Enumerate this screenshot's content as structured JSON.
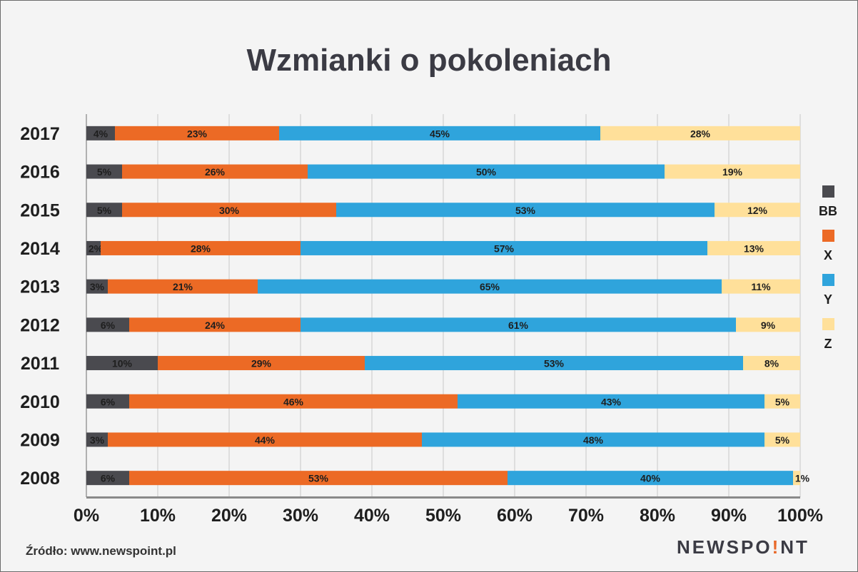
{
  "chart_data": {
    "type": "bar",
    "orientation": "horizontal",
    "stacked": true,
    "title": "Wzmianki o pokoleniach",
    "categories": [
      "2017",
      "2016",
      "2015",
      "2014",
      "2013",
      "2012",
      "2011",
      "2010",
      "2009",
      "2008"
    ],
    "series": [
      {
        "name": "BB",
        "color": "#4a4a4f",
        "values": [
          4,
          5,
          5,
          2,
          3,
          6,
          10,
          6,
          3,
          6
        ]
      },
      {
        "name": "X",
        "color": "#ec6a25",
        "values": [
          23,
          26,
          30,
          28,
          21,
          24,
          29,
          46,
          44,
          53
        ]
      },
      {
        "name": "Y",
        "color": "#2fa4dc",
        "values": [
          45,
          50,
          53,
          57,
          65,
          61,
          53,
          43,
          48,
          40
        ]
      },
      {
        "name": "Z",
        "color": "#ffe09a",
        "values": [
          28,
          19,
          12,
          13,
          11,
          9,
          8,
          5,
          5,
          1
        ]
      }
    ],
    "data_labels": [
      [
        "4%",
        "23%",
        "45%",
        "28%"
      ],
      [
        "5%",
        "26%",
        "50%",
        "19%"
      ],
      [
        "5%",
        "30%",
        "53%",
        "12%"
      ],
      [
        "2%",
        "28%",
        "57%",
        "13%"
      ],
      [
        "3%",
        "21%",
        "65%",
        "11%"
      ],
      [
        "6%",
        "24%",
        "61%",
        "9%"
      ],
      [
        "10%",
        "29%",
        "53%",
        "8%"
      ],
      [
        "6%",
        "46%",
        "43%",
        "5%"
      ],
      [
        "3%",
        "44%",
        "48%",
        "5%"
      ],
      [
        "6%",
        "53%",
        "40%",
        "1%"
      ]
    ],
    "xlim": [
      0,
      100
    ],
    "xticks": [
      "0%",
      "10%",
      "20%",
      "30%",
      "40%",
      "50%",
      "60%",
      "70%",
      "80%",
      "90%",
      "100%"
    ],
    "grid": true,
    "legend_position": "right"
  },
  "footer": {
    "source": "Źródło: www.newspoint.pl",
    "logo_before": "NEWSPO",
    "logo_accent": "!",
    "logo_after": "NT"
  }
}
